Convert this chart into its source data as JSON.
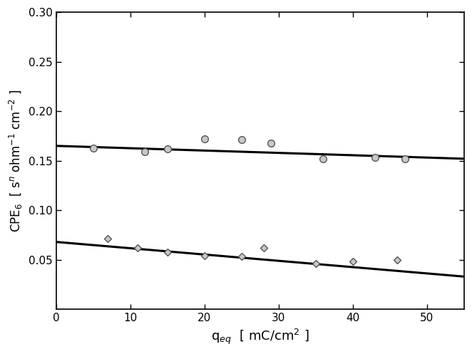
{
  "title": "",
  "xlabel": "q$_{eq}$  [ mC/cm$^2$ ]",
  "ylabel": "CPE$_6$  [ s$^n$ ohm$^{-1}$ cm$^{-2}$ ]",
  "xlim": [
    0,
    55
  ],
  "ylim": [
    0,
    0.3
  ],
  "yticks": [
    0.05,
    0.1,
    0.15,
    0.2,
    0.25,
    0.3
  ],
  "xticks": [
    0,
    10,
    20,
    30,
    40,
    50
  ],
  "series1_x": [
    5,
    12,
    15,
    20,
    25,
    29,
    36,
    43,
    47
  ],
  "series1_y": [
    0.163,
    0.159,
    0.162,
    0.172,
    0.171,
    0.168,
    0.152,
    0.153,
    0.152
  ],
  "series2_x": [
    7,
    11,
    15,
    20,
    25,
    28,
    35,
    40,
    46
  ],
  "series2_y": [
    0.071,
    0.062,
    0.058,
    0.054,
    0.053,
    0.062,
    0.046,
    0.048,
    0.05
  ],
  "line1_x": [
    0,
    55
  ],
  "line1_y": [
    0.165,
    0.152
  ],
  "line2_x": [
    0,
    55
  ],
  "line2_y": [
    0.068,
    0.033
  ],
  "marker1": "o",
  "marker2": "D",
  "marker_facecolor": "#c8c8c8",
  "marker_edge_color": "#555555",
  "line_color": "#000000",
  "background_color": "#ffffff",
  "marker_size1": 7,
  "marker_size2": 5,
  "linewidth": 2.2,
  "xlabel_fontsize": 13,
  "ylabel_fontsize": 12,
  "tick_fontsize": 11
}
